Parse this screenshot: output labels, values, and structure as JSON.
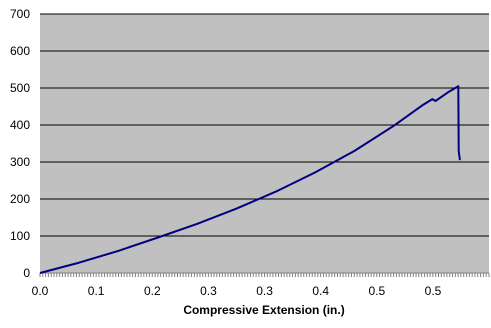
{
  "chart_data": {
    "type": "line",
    "title": "",
    "xlabel": "Compressive Extension (in.)",
    "ylabel": "",
    "x_tick_labels": [
      "0.0",
      "0.1",
      "0.2",
      "0.3",
      "0.3",
      "0.4",
      "0.5",
      "0.5"
    ],
    "y_ticks": [
      0,
      100,
      200,
      300,
      400,
      500,
      600,
      700
    ],
    "xlim": [
      0,
      0.571
    ],
    "ylim": [
      0,
      700
    ],
    "grid": true,
    "legend": "none",
    "series": [
      {
        "x": [
          0,
          0.05,
          0.1,
          0.15,
          0.2,
          0.25,
          0.3,
          0.35,
          0.4,
          0.45,
          0.486,
          0.499,
          0.503,
          0.52,
          0.532,
          0.5325,
          0.534
        ],
        "y": [
          0,
          28,
          60,
          96,
          133,
          174,
          220,
          272,
          330,
          398,
          453,
          470,
          465,
          490,
          505,
          330,
          305
        ]
      }
    ],
    "colors": {
      "plot_background": "#c0c0c0",
      "line": "#000080",
      "gridline": "#000000"
    }
  }
}
